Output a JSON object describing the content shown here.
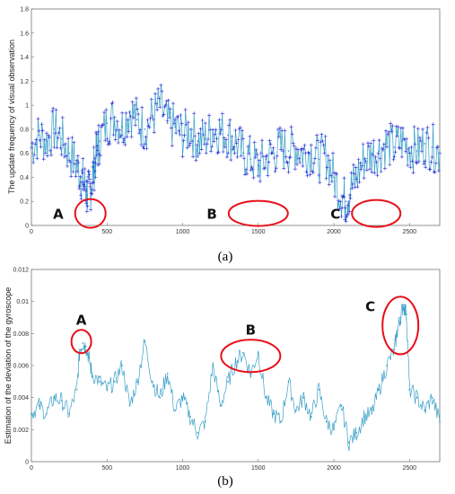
{
  "figure": {
    "captions": [
      "(a)",
      "(b)"
    ],
    "colors": {
      "line": "#3aa0c8",
      "marker": "#2a2ad8",
      "annotation": "#e8101a",
      "axis": "#777777"
    }
  },
  "chart_data": [
    {
      "type": "line",
      "panel": "a",
      "ylabel": "The update frequency of visual observation",
      "xlabel": "",
      "xlim": [
        0,
        2700
      ],
      "ylim": [
        0,
        1.8
      ],
      "xticks": [
        0,
        500,
        1000,
        1500,
        2000,
        2500
      ],
      "yticks": [
        0,
        0.2,
        0.4,
        0.6,
        0.8,
        1,
        1.2,
        1.4,
        1.6,
        1.8
      ],
      "ytick_labels": [
        "0",
        "0.2",
        "0.4",
        "0.6",
        "0.8",
        "1",
        "1.2",
        "1.4",
        "1.6",
        "1.8"
      ],
      "markers": "+",
      "series": [
        {
          "x": [
            0,
            50,
            100,
            150,
            200,
            250,
            300,
            330,
            350,
            370,
            390,
            410,
            430,
            450,
            500,
            550,
            600,
            650,
            700,
            750,
            800,
            850,
            900,
            950,
            1000,
            1050,
            1100,
            1150,
            1200,
            1250,
            1300,
            1350,
            1400,
            1450,
            1500,
            1550,
            1600,
            1650,
            1700,
            1750,
            1800,
            1850,
            1900,
            1950,
            2000,
            2050,
            2080,
            2110,
            2150,
            2200,
            2250,
            2300,
            2350,
            2400,
            2450,
            2500,
            2550,
            2600,
            2650,
            2700
          ],
          "y": [
            0.65,
            0.75,
            0.7,
            0.8,
            0.72,
            0.6,
            0.5,
            0.4,
            0.35,
            0.25,
            0.3,
            0.45,
            0.6,
            0.7,
            0.85,
            0.9,
            0.82,
            0.95,
            0.88,
            0.8,
            0.9,
            1.0,
            0.85,
            0.82,
            0.75,
            0.8,
            0.7,
            0.72,
            0.8,
            0.78,
            0.75,
            0.7,
            0.6,
            0.55,
            0.5,
            0.55,
            0.6,
            0.65,
            0.62,
            0.65,
            0.6,
            0.62,
            0.55,
            0.58,
            0.4,
            0.25,
            0.2,
            0.3,
            0.4,
            0.55,
            0.6,
            0.62,
            0.68,
            0.65,
            0.7,
            0.65,
            0.62,
            0.68,
            0.65,
            0.6
          ]
        }
      ],
      "annotations": [
        {
          "label": "A",
          "x": 390,
          "y": 0.1
        },
        {
          "label": "B",
          "x": 1500,
          "y": 0.1
        },
        {
          "label": "C",
          "x": 2280,
          "y": 0.1
        }
      ]
    },
    {
      "type": "line",
      "panel": "b",
      "ylabel": "Estimation of the deviation of the gyroscope",
      "xlabel": "",
      "xlim": [
        0,
        2700
      ],
      "ylim": [
        0,
        0.012
      ],
      "xticks": [
        0,
        500,
        1000,
        1500,
        2000,
        2500
      ],
      "yticks": [
        0,
        0.002,
        0.004,
        0.006,
        0.008,
        0.01,
        0.012
      ],
      "ytick_labels": [
        "0",
        "0.002",
        "0.004",
        "0.006",
        "0.008",
        "0.01",
        "0.012"
      ],
      "series": [
        {
          "x": [
            0,
            50,
            100,
            150,
            200,
            250,
            300,
            320,
            340,
            360,
            380,
            400,
            450,
            500,
            550,
            600,
            650,
            700,
            750,
            800,
            850,
            900,
            950,
            1000,
            1050,
            1100,
            1150,
            1200,
            1250,
            1300,
            1350,
            1400,
            1450,
            1500,
            1550,
            1600,
            1650,
            1700,
            1750,
            1800,
            1850,
            1900,
            1950,
            2000,
            2050,
            2100,
            2150,
            2200,
            2250,
            2300,
            2350,
            2400,
            2420,
            2440,
            2460,
            2480,
            2500,
            2550,
            2600,
            2650,
            2700
          ],
          "y": [
            0.003,
            0.0035,
            0.003,
            0.004,
            0.0038,
            0.003,
            0.0045,
            0.007,
            0.0074,
            0.0072,
            0.0065,
            0.0055,
            0.005,
            0.0045,
            0.005,
            0.006,
            0.0035,
            0.005,
            0.0075,
            0.005,
            0.004,
            0.0055,
            0.0032,
            0.004,
            0.0028,
            0.0018,
            0.0025,
            0.006,
            0.0035,
            0.005,
            0.0062,
            0.0068,
            0.0055,
            0.0068,
            0.004,
            0.003,
            0.0025,
            0.005,
            0.0032,
            0.004,
            0.0028,
            0.0045,
            0.0025,
            0.002,
            0.0035,
            0.0012,
            0.0018,
            0.0028,
            0.003,
            0.0045,
            0.006,
            0.007,
            0.0082,
            0.009,
            0.0098,
            0.0092,
            0.0045,
            0.004,
            0.0032,
            0.004,
            0.0025
          ]
        }
      ],
      "annotations": [
        {
          "label": "A",
          "x": 330,
          "y": 0.0075
        },
        {
          "label": "B",
          "x": 1450,
          "y": 0.0066
        },
        {
          "label": "C",
          "x": 2440,
          "y": 0.0085
        }
      ]
    }
  ]
}
